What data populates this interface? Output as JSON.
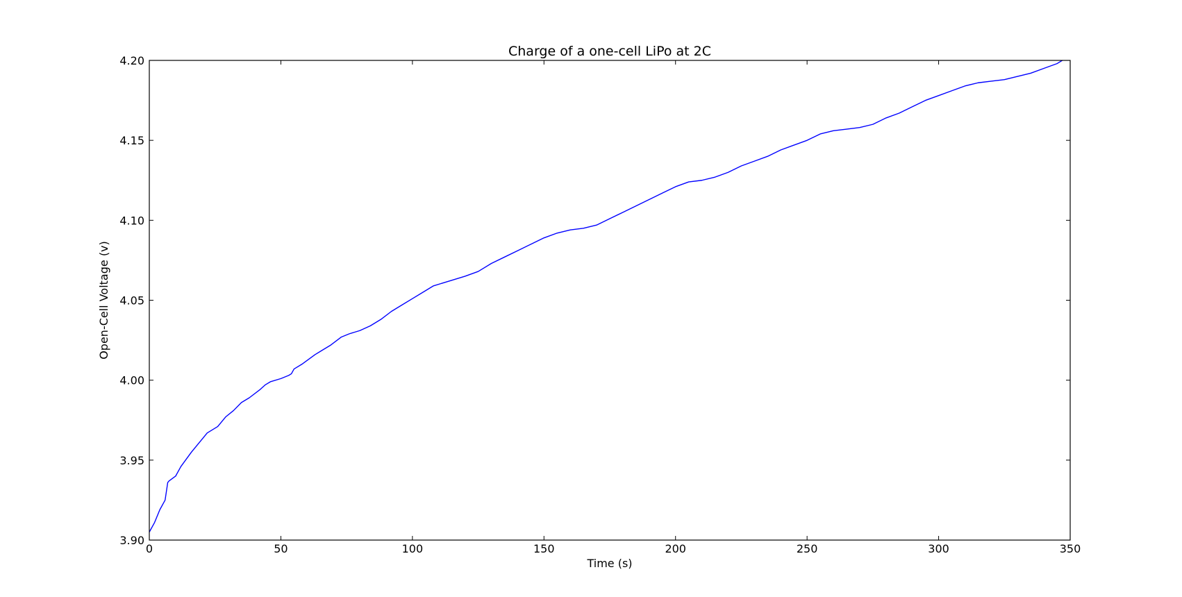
{
  "chart_data": {
    "type": "line",
    "title": "Charge of a one-cell LiPo at 2C",
    "xlabel": "Time (s)",
    "ylabel": "Open-Cell Voltage (v)",
    "xlim": [
      0,
      350
    ],
    "ylim": [
      3.9,
      4.2
    ],
    "xticks": [
      0,
      50,
      100,
      150,
      200,
      250,
      300,
      350
    ],
    "yticks": [
      3.9,
      3.95,
      4.0,
      4.05,
      4.1,
      4.15,
      4.2
    ],
    "xtick_labels": [
      "0",
      "50",
      "100",
      "150",
      "200",
      "250",
      "300",
      "350"
    ],
    "ytick_labels": [
      "3.90",
      "3.95",
      "4.00",
      "4.05",
      "4.10",
      "4.15",
      "4.20"
    ],
    "grid": false,
    "series": [
      {
        "color": "#0000ff",
        "x": [
          0,
          2,
          4,
          6,
          7,
          7.5,
          10,
          12,
          16,
          20,
          22,
          26,
          29,
          32,
          35,
          38,
          42,
          44,
          46,
          50,
          53,
          54,
          55,
          58,
          63,
          66,
          69,
          73,
          76,
          80,
          84,
          88,
          92,
          96,
          100,
          104,
          108,
          112,
          116,
          120,
          125,
          130,
          135,
          140,
          145,
          150,
          155,
          160,
          165,
          170,
          175,
          180,
          185,
          190,
          195,
          200,
          205,
          210,
          215,
          220,
          225,
          230,
          235,
          240,
          245,
          250,
          255,
          260,
          265,
          270,
          275,
          280,
          285,
          290,
          295,
          300,
          305,
          310,
          315,
          320,
          325,
          330,
          335,
          340,
          345,
          347
        ],
        "y": [
          3.905,
          3.911,
          3.919,
          3.925,
          3.936,
          3.937,
          3.94,
          3.946,
          3.955,
          3.963,
          3.967,
          3.971,
          3.977,
          3.981,
          3.986,
          3.989,
          3.994,
          3.997,
          3.999,
          4.001,
          4.003,
          4.004,
          4.007,
          4.01,
          4.016,
          4.019,
          4.022,
          4.027,
          4.029,
          4.031,
          4.034,
          4.038,
          4.043,
          4.047,
          4.051,
          4.055,
          4.059,
          4.061,
          4.063,
          4.065,
          4.068,
          4.073,
          4.077,
          4.081,
          4.085,
          4.089,
          4.092,
          4.094,
          4.095,
          4.097,
          4.101,
          4.105,
          4.109,
          4.113,
          4.117,
          4.121,
          4.124,
          4.125,
          4.127,
          4.13,
          4.134,
          4.137,
          4.14,
          4.144,
          4.147,
          4.15,
          4.154,
          4.156,
          4.157,
          4.158,
          4.16,
          4.164,
          4.167,
          4.171,
          4.175,
          4.178,
          4.181,
          4.184,
          4.186,
          4.187,
          4.188,
          4.19,
          4.192,
          4.195,
          4.198,
          4.2
        ]
      }
    ]
  }
}
